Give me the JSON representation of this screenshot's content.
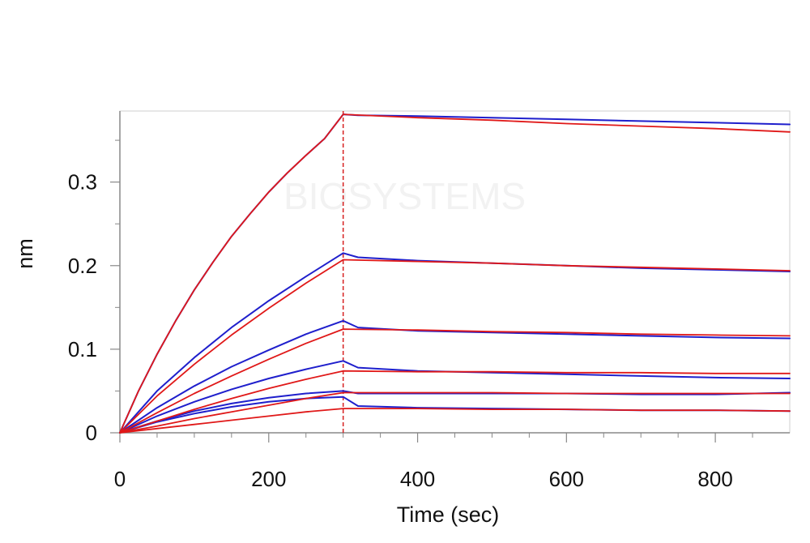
{
  "chart_data": {
    "type": "line",
    "title": "",
    "xlabel": "Time (sec)",
    "ylabel": "nm",
    "xlim": [
      0,
      900
    ],
    "ylim": [
      0,
      0.385
    ],
    "xticks": [
      0,
      200,
      400,
      600,
      800
    ],
    "xtick_labels": [
      "0",
      "200",
      "400",
      "600",
      "800"
    ],
    "yticks": [
      0,
      0.1,
      0.2,
      0.3
    ],
    "ytick_labels": [
      "0",
      "0.1",
      "0.2",
      "0.3"
    ],
    "association_end_x": 300,
    "grid": false,
    "legend": "none",
    "watermark": "BIOSYSTEMS",
    "colors": {
      "measured": "#1f1fcc",
      "fitted": "#e01818",
      "divider": "#d62020",
      "axis": "#888888"
    },
    "series": [
      {
        "kind": "measured",
        "points": [
          [
            0,
            0
          ],
          [
            25,
            0.05
          ],
          [
            50,
            0.094
          ],
          [
            75,
            0.134
          ],
          [
            100,
            0.171
          ],
          [
            125,
            0.204
          ],
          [
            150,
            0.235
          ],
          [
            175,
            0.262
          ],
          [
            200,
            0.288
          ],
          [
            225,
            0.311
          ],
          [
            250,
            0.332
          ],
          [
            275,
            0.352
          ],
          [
            300,
            0.381
          ],
          [
            320,
            0.38
          ],
          [
            400,
            0.379
          ],
          [
            500,
            0.377
          ],
          [
            600,
            0.375
          ],
          [
            700,
            0.373
          ],
          [
            800,
            0.371
          ],
          [
            900,
            0.369
          ]
        ]
      },
      {
        "kind": "fitted",
        "points": [
          [
            0,
            0
          ],
          [
            25,
            0.05
          ],
          [
            50,
            0.094
          ],
          [
            75,
            0.134
          ],
          [
            100,
            0.171
          ],
          [
            125,
            0.204
          ],
          [
            150,
            0.235
          ],
          [
            175,
            0.262
          ],
          [
            200,
            0.288
          ],
          [
            225,
            0.311
          ],
          [
            250,
            0.332
          ],
          [
            275,
            0.352
          ],
          [
            300,
            0.381
          ],
          [
            400,
            0.377
          ],
          [
            500,
            0.374
          ],
          [
            600,
            0.37
          ],
          [
            700,
            0.367
          ],
          [
            800,
            0.364
          ],
          [
            900,
            0.36
          ]
        ]
      },
      {
        "kind": "measured",
        "points": [
          [
            0,
            0
          ],
          [
            50,
            0.05
          ],
          [
            100,
            0.09
          ],
          [
            150,
            0.126
          ],
          [
            200,
            0.158
          ],
          [
            250,
            0.187
          ],
          [
            300,
            0.215
          ],
          [
            320,
            0.21
          ],
          [
            400,
            0.206
          ],
          [
            500,
            0.203
          ],
          [
            600,
            0.2
          ],
          [
            700,
            0.197
          ],
          [
            800,
            0.195
          ],
          [
            900,
            0.193
          ]
        ]
      },
      {
        "kind": "fitted",
        "points": [
          [
            0,
            0
          ],
          [
            50,
            0.044
          ],
          [
            100,
            0.082
          ],
          [
            150,
            0.117
          ],
          [
            200,
            0.149
          ],
          [
            250,
            0.179
          ],
          [
            300,
            0.207
          ],
          [
            400,
            0.205
          ],
          [
            500,
            0.203
          ],
          [
            600,
            0.2
          ],
          [
            700,
            0.198
          ],
          [
            800,
            0.196
          ],
          [
            900,
            0.194
          ]
        ]
      },
      {
        "kind": "measured",
        "points": [
          [
            0,
            0
          ],
          [
            50,
            0.03
          ],
          [
            100,
            0.056
          ],
          [
            150,
            0.079
          ],
          [
            200,
            0.099
          ],
          [
            250,
            0.118
          ],
          [
            300,
            0.134
          ],
          [
            320,
            0.126
          ],
          [
            400,
            0.122
          ],
          [
            500,
            0.12
          ],
          [
            600,
            0.118
          ],
          [
            700,
            0.116
          ],
          [
            800,
            0.114
          ],
          [
            900,
            0.113
          ]
        ]
      },
      {
        "kind": "fitted",
        "points": [
          [
            0,
            0
          ],
          [
            50,
            0.024
          ],
          [
            100,
            0.047
          ],
          [
            150,
            0.068
          ],
          [
            200,
            0.088
          ],
          [
            250,
            0.107
          ],
          [
            300,
            0.124
          ],
          [
            400,
            0.123
          ],
          [
            500,
            0.121
          ],
          [
            600,
            0.12
          ],
          [
            700,
            0.118
          ],
          [
            800,
            0.117
          ],
          [
            900,
            0.116
          ]
        ]
      },
      {
        "kind": "measured",
        "points": [
          [
            0,
            0
          ],
          [
            50,
            0.02
          ],
          [
            100,
            0.037
          ],
          [
            150,
            0.052
          ],
          [
            200,
            0.065
          ],
          [
            250,
            0.076
          ],
          [
            300,
            0.086
          ],
          [
            320,
            0.078
          ],
          [
            400,
            0.074
          ],
          [
            500,
            0.072
          ],
          [
            600,
            0.07
          ],
          [
            700,
            0.068
          ],
          [
            800,
            0.066
          ],
          [
            900,
            0.065
          ]
        ]
      },
      {
        "kind": "fitted",
        "points": [
          [
            0,
            0
          ],
          [
            50,
            0.014
          ],
          [
            100,
            0.028
          ],
          [
            150,
            0.041
          ],
          [
            200,
            0.053
          ],
          [
            250,
            0.064
          ],
          [
            300,
            0.074
          ],
          [
            400,
            0.073
          ],
          [
            500,
            0.073
          ],
          [
            600,
            0.072
          ],
          [
            700,
            0.072
          ],
          [
            800,
            0.071
          ],
          [
            900,
            0.071
          ]
        ]
      },
      {
        "kind": "measured",
        "points": [
          [
            0,
            0
          ],
          [
            50,
            0.014
          ],
          [
            100,
            0.026
          ],
          [
            150,
            0.035
          ],
          [
            200,
            0.042
          ],
          [
            250,
            0.047
          ],
          [
            300,
            0.05
          ],
          [
            320,
            0.047
          ],
          [
            400,
            0.047
          ],
          [
            500,
            0.047
          ],
          [
            600,
            0.047
          ],
          [
            700,
            0.046
          ],
          [
            800,
            0.046
          ],
          [
            900,
            0.048
          ]
        ]
      },
      {
        "kind": "fitted",
        "points": [
          [
            0,
            0
          ],
          [
            50,
            0.008
          ],
          [
            100,
            0.017
          ],
          [
            150,
            0.025
          ],
          [
            200,
            0.033
          ],
          [
            250,
            0.041
          ],
          [
            300,
            0.048
          ],
          [
            400,
            0.048
          ],
          [
            500,
            0.048
          ],
          [
            600,
            0.047
          ],
          [
            700,
            0.047
          ],
          [
            800,
            0.047
          ],
          [
            900,
            0.047
          ]
        ]
      },
      {
        "kind": "measured",
        "points": [
          [
            0,
            0
          ],
          [
            50,
            0.013
          ],
          [
            100,
            0.023
          ],
          [
            150,
            0.031
          ],
          [
            200,
            0.037
          ],
          [
            250,
            0.041
          ],
          [
            300,
            0.043
          ],
          [
            320,
            0.032
          ],
          [
            400,
            0.03
          ],
          [
            500,
            0.029
          ],
          [
            600,
            0.028
          ],
          [
            700,
            0.027
          ],
          [
            800,
            0.027
          ],
          [
            900,
            0.026
          ]
        ]
      },
      {
        "kind": "fitted",
        "points": [
          [
            0,
            0
          ],
          [
            50,
            0.005
          ],
          [
            100,
            0.01
          ],
          [
            150,
            0.015
          ],
          [
            200,
            0.02
          ],
          [
            250,
            0.025
          ],
          [
            300,
            0.029
          ],
          [
            400,
            0.029
          ],
          [
            500,
            0.028
          ],
          [
            600,
            0.028
          ],
          [
            700,
            0.027
          ],
          [
            800,
            0.027
          ],
          [
            900,
            0.026
          ]
        ]
      }
    ]
  }
}
